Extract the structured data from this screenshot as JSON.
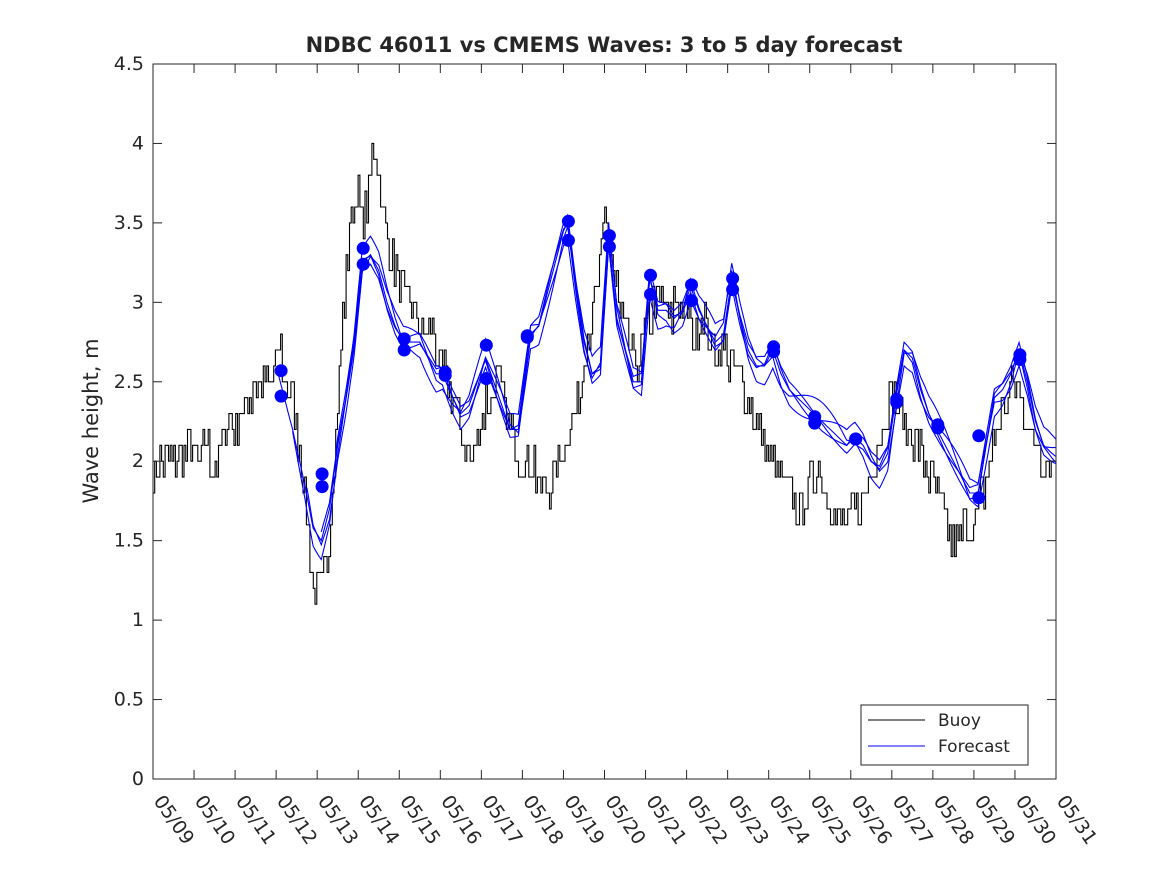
{
  "chart_data": {
    "type": "line",
    "title": "NDBC 46011 vs CMEMS Waves: 3 to 5 day forecast",
    "xlabel": "",
    "ylabel": "Wave height, m",
    "x_tick_labels": [
      "05/09",
      "05/10",
      "05/11",
      "05/12",
      "05/13",
      "05/14",
      "05/15",
      "05/16",
      "05/17",
      "05/18",
      "05/19",
      "05/20",
      "05/21",
      "05/22",
      "05/23",
      "05/24",
      "05/25",
      "05/26",
      "05/27",
      "05/28",
      "05/29",
      "05/30",
      "05/31"
    ],
    "y_tick_labels": [
      "0",
      "0.5",
      "1",
      "1.5",
      "2",
      "2.5",
      "3",
      "3.5",
      "4",
      "4.5"
    ],
    "xlim": [
      0,
      22
    ],
    "ylim": [
      0,
      4.5
    ],
    "grid": false,
    "legend_position": "bottom-right",
    "legend": [
      {
        "label": "Buoy",
        "color": "#000000"
      },
      {
        "label": "Forecast",
        "color": "#0000ff"
      }
    ],
    "colors": {
      "buoy": "#000000",
      "forecast": "#0000ff",
      "axes": "#262626"
    },
    "buoy_anchor_points": [
      [
        0,
        1.85
      ],
      [
        0.1,
        2.05
      ],
      [
        0.3,
        1.95
      ],
      [
        0.5,
        2.05
      ],
      [
        0.7,
        1.95
      ],
      [
        0.9,
        2.1
      ],
      [
        1.1,
        2.0
      ],
      [
        1.3,
        2.1
      ],
      [
        1.5,
        1.95
      ],
      [
        1.7,
        2.1
      ],
      [
        1.8,
        2.3
      ],
      [
        2.0,
        2.2
      ],
      [
        2.2,
        2.3
      ],
      [
        2.4,
        2.45
      ],
      [
        2.6,
        2.45
      ],
      [
        2.8,
        2.5
      ],
      [
        3.0,
        2.6
      ],
      [
        3.1,
        2.7
      ],
      [
        3.2,
        2.5
      ],
      [
        3.4,
        2.4
      ],
      [
        3.5,
        2.2
      ],
      [
        3.6,
        2.0
      ],
      [
        3.7,
        1.8
      ],
      [
        3.8,
        1.5
      ],
      [
        3.9,
        1.25
      ],
      [
        4.1,
        1.2
      ],
      [
        4.25,
        1.4
      ],
      [
        4.4,
        2.0
      ],
      [
        4.5,
        2.4
      ],
      [
        4.6,
        2.8
      ],
      [
        4.7,
        3.2
      ],
      [
        4.8,
        3.5
      ],
      [
        4.9,
        3.6
      ],
      [
        5.0,
        3.7
      ],
      [
        5.1,
        3.5
      ],
      [
        5.2,
        3.6
      ],
      [
        5.3,
        3.8
      ],
      [
        5.4,
        4.0
      ],
      [
        5.5,
        3.85
      ],
      [
        5.6,
        3.5
      ],
      [
        5.8,
        3.3
      ],
      [
        6.0,
        3.1
      ],
      [
        6.2,
        3.0
      ],
      [
        6.4,
        2.9
      ],
      [
        6.6,
        2.8
      ],
      [
        6.8,
        2.8
      ],
      [
        7.0,
        2.6
      ],
      [
        7.2,
        2.5
      ],
      [
        7.4,
        2.3
      ],
      [
        7.6,
        2.1
      ],
      [
        7.8,
        2.0
      ],
      [
        8.0,
        2.3
      ],
      [
        8.2,
        2.4
      ],
      [
        8.4,
        2.5
      ],
      [
        8.6,
        2.3
      ],
      [
        8.8,
        2.1
      ],
      [
        9.0,
        1.95
      ],
      [
        9.2,
        2.05
      ],
      [
        9.4,
        1.85
      ],
      [
        9.6,
        1.8
      ],
      [
        9.8,
        1.95
      ],
      [
        10.0,
        2.1
      ],
      [
        10.2,
        2.3
      ],
      [
        10.4,
        2.4
      ],
      [
        10.5,
        2.7
      ],
      [
        10.7,
        2.9
      ],
      [
        10.9,
        3.2
      ],
      [
        11.0,
        3.6
      ],
      [
        11.1,
        3.4
      ],
      [
        11.2,
        3.2
      ],
      [
        11.4,
        2.9
      ],
      [
        11.6,
        2.7
      ],
      [
        11.8,
        2.6
      ],
      [
        12.0,
        2.8
      ],
      [
        12.2,
        3.0
      ],
      [
        12.4,
        3.0
      ],
      [
        12.6,
        2.9
      ],
      [
        12.8,
        3.05
      ],
      [
        13.0,
        2.9
      ],
      [
        13.2,
        2.8
      ],
      [
        13.4,
        2.9
      ],
      [
        13.6,
        2.75
      ],
      [
        13.8,
        2.7
      ],
      [
        14.0,
        2.65
      ],
      [
        14.2,
        2.55
      ],
      [
        14.4,
        2.45
      ],
      [
        14.6,
        2.35
      ],
      [
        14.8,
        2.2
      ],
      [
        15.0,
        2.0
      ],
      [
        15.2,
        1.95
      ],
      [
        15.4,
        1.8
      ],
      [
        15.6,
        1.75
      ],
      [
        15.8,
        1.7
      ],
      [
        16.0,
        1.85
      ],
      [
        16.2,
        2.0
      ],
      [
        16.4,
        1.8
      ],
      [
        16.6,
        1.65
      ],
      [
        16.8,
        1.6
      ],
      [
        17.0,
        1.65
      ],
      [
        17.2,
        1.7
      ],
      [
        17.4,
        1.85
      ],
      [
        17.6,
        2.05
      ],
      [
        17.8,
        2.25
      ],
      [
        18.0,
        2.45
      ],
      [
        18.2,
        2.3
      ],
      [
        18.4,
        2.2
      ],
      [
        18.6,
        2.1
      ],
      [
        18.8,
        2.0
      ],
      [
        19.0,
        1.85
      ],
      [
        19.2,
        1.7
      ],
      [
        19.4,
        1.55
      ],
      [
        19.6,
        1.5
      ],
      [
        19.8,
        1.6
      ],
      [
        20.0,
        1.6
      ],
      [
        20.2,
        1.8
      ],
      [
        20.4,
        2.0
      ],
      [
        20.6,
        2.25
      ],
      [
        20.8,
        2.4
      ],
      [
        21.0,
        2.55
      ],
      [
        21.2,
        2.35
      ],
      [
        21.4,
        2.15
      ],
      [
        21.6,
        2.05
      ],
      [
        21.8,
        2.0
      ],
      [
        22.0,
        1.98
      ]
    ],
    "forecast_anchor_points": [
      [
        3.05,
        2.55
      ],
      [
        3.4,
        2.2
      ],
      [
        3.7,
        1.85
      ],
      [
        3.9,
        1.58
      ],
      [
        4.1,
        1.5
      ],
      [
        4.3,
        1.7
      ],
      [
        4.5,
        2.1
      ],
      [
        4.7,
        2.4
      ],
      [
        4.9,
        2.75
      ],
      [
        5.1,
        3.25
      ],
      [
        5.3,
        3.3
      ],
      [
        5.5,
        3.2
      ],
      [
        5.7,
        3.0
      ],
      [
        5.9,
        2.85
      ],
      [
        6.1,
        2.75
      ],
      [
        6.3,
        2.75
      ],
      [
        6.5,
        2.75
      ],
      [
        6.7,
        2.65
      ],
      [
        6.9,
        2.55
      ],
      [
        7.05,
        2.55
      ],
      [
        7.3,
        2.4
      ],
      [
        7.5,
        2.3
      ],
      [
        7.7,
        2.35
      ],
      [
        7.9,
        2.5
      ],
      [
        8.1,
        2.65
      ],
      [
        8.3,
        2.5
      ],
      [
        8.5,
        2.35
      ],
      [
        8.7,
        2.2
      ],
      [
        8.9,
        2.2
      ],
      [
        9.05,
        2.5
      ],
      [
        9.2,
        2.8
      ],
      [
        9.4,
        2.85
      ],
      [
        9.6,
        3.05
      ],
      [
        9.8,
        3.25
      ],
      [
        10.0,
        3.45
      ],
      [
        10.1,
        3.5
      ],
      [
        10.3,
        3.1
      ],
      [
        10.5,
        2.75
      ],
      [
        10.7,
        2.55
      ],
      [
        10.9,
        2.6
      ],
      [
        11.1,
        3.4
      ],
      [
        11.3,
        2.9
      ],
      [
        11.5,
        2.7
      ],
      [
        11.7,
        2.5
      ],
      [
        11.9,
        2.5
      ],
      [
        12.1,
        3.15
      ],
      [
        12.3,
        2.95
      ],
      [
        12.5,
        2.95
      ],
      [
        12.7,
        2.9
      ],
      [
        12.9,
        2.95
      ],
      [
        13.1,
        3.1
      ],
      [
        13.3,
        2.95
      ],
      [
        13.5,
        2.85
      ],
      [
        13.7,
        2.75
      ],
      [
        13.9,
        2.8
      ],
      [
        14.1,
        3.15
      ],
      [
        14.3,
        2.9
      ],
      [
        14.5,
        2.7
      ],
      [
        14.7,
        2.6
      ],
      [
        14.9,
        2.6
      ],
      [
        15.1,
        2.7
      ],
      [
        15.3,
        2.55
      ],
      [
        15.5,
        2.45
      ],
      [
        15.7,
        2.4
      ],
      [
        15.9,
        2.35
      ],
      [
        16.1,
        2.3
      ],
      [
        16.3,
        2.25
      ],
      [
        16.5,
        2.2
      ],
      [
        16.7,
        2.15
      ],
      [
        16.9,
        2.1
      ],
      [
        17.1,
        2.15
      ],
      [
        17.3,
        2.1
      ],
      [
        17.5,
        2.0
      ],
      [
        17.7,
        1.95
      ],
      [
        17.9,
        2.05
      ],
      [
        18.1,
        2.4
      ],
      [
        18.3,
        2.7
      ],
      [
        18.5,
        2.65
      ],
      [
        18.7,
        2.45
      ],
      [
        18.9,
        2.3
      ],
      [
        19.1,
        2.2
      ],
      [
        19.3,
        2.1
      ],
      [
        19.5,
        2.0
      ],
      [
        19.7,
        1.9
      ],
      [
        19.9,
        1.8
      ],
      [
        20.1,
        1.8
      ],
      [
        20.3,
        2.1
      ],
      [
        20.5,
        2.4
      ],
      [
        20.7,
        2.45
      ],
      [
        20.9,
        2.55
      ],
      [
        21.1,
        2.7
      ],
      [
        21.3,
        2.5
      ],
      [
        21.5,
        2.25
      ],
      [
        21.7,
        2.1
      ],
      [
        21.9,
        2.05
      ],
      [
        22.0,
        2.03
      ]
    ],
    "forecast_markers": [
      [
        3.12,
        2.57
      ],
      [
        3.12,
        2.41
      ],
      [
        4.12,
        1.92
      ],
      [
        4.12,
        1.84
      ],
      [
        5.12,
        3.34
      ],
      [
        5.12,
        3.24
      ],
      [
        6.12,
        2.77
      ],
      [
        6.12,
        2.7
      ],
      [
        7.12,
        2.56
      ],
      [
        7.12,
        2.54
      ],
      [
        8.12,
        2.73
      ],
      [
        8.12,
        2.52
      ],
      [
        9.12,
        2.79
      ],
      [
        9.12,
        2.78
      ],
      [
        10.12,
        3.51
      ],
      [
        10.12,
        3.39
      ],
      [
        11.12,
        3.42
      ],
      [
        11.12,
        3.35
      ],
      [
        12.12,
        3.17
      ],
      [
        12.12,
        3.05
      ],
      [
        13.12,
        3.11
      ],
      [
        13.12,
        3.01
      ],
      [
        14.12,
        3.15
      ],
      [
        14.12,
        3.08
      ],
      [
        15.12,
        2.72
      ],
      [
        15.12,
        2.69
      ],
      [
        16.12,
        2.28
      ],
      [
        16.12,
        2.24
      ],
      [
        17.12,
        2.14
      ],
      [
        17.12,
        2.14
      ],
      [
        18.12,
        2.39
      ],
      [
        18.12,
        2.37
      ],
      [
        19.12,
        2.23
      ],
      [
        19.12,
        2.21
      ],
      [
        20.12,
        2.16
      ],
      [
        20.12,
        1.77
      ],
      [
        21.12,
        2.67
      ],
      [
        21.12,
        2.64
      ]
    ]
  }
}
